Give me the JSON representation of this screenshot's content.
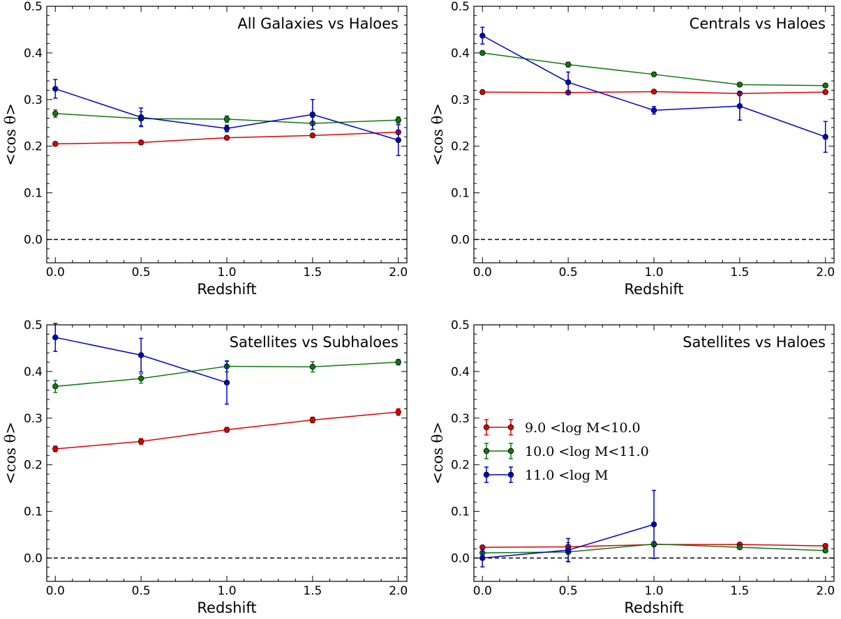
{
  "colors": {
    "red": "#dd0000",
    "green": "#117711",
    "blue": "#0000cc",
    "axis": "#000000"
  },
  "legend": [
    {
      "label": "9.0 <log M<10.0",
      "color": "#dd0000"
    },
    {
      "label": "10.0 <log M<11.0",
      "color": "#117711"
    },
    {
      "label": "11.0 <log M",
      "color": "#0000cc"
    }
  ],
  "chart_data": [
    {
      "type": "line",
      "title": "All Galaxies vs Haloes",
      "xlabel": "Redshift",
      "ylabel": "<cos θ>",
      "xlim": [
        -0.05,
        2.05
      ],
      "ylim": [
        -0.05,
        0.5
      ],
      "x_ticks": [
        "0.0",
        "0.5",
        "1.0",
        "1.5",
        "2.0"
      ],
      "y_ticks": [
        "0.0",
        "0.1",
        "0.2",
        "0.3",
        "0.4",
        "0.5"
      ],
      "reference_line": 0.0,
      "x": [
        0.0,
        0.5,
        1.0,
        1.5,
        2.0
      ],
      "series": [
        {
          "name": "9.0 <log M<10.0",
          "values": [
            0.205,
            0.208,
            0.218,
            0.223,
            0.23
          ],
          "errors": [
            0.004,
            0.004,
            0.004,
            0.004,
            0.004
          ]
        },
        {
          "name": "10.0 <log M<11.0",
          "values": [
            0.27,
            0.259,
            0.258,
            0.249,
            0.256
          ],
          "errors": [
            0.008,
            0.015,
            0.007,
            0.013,
            0.007
          ]
        },
        {
          "name": "11.0 <log M",
          "values": [
            0.323,
            0.262,
            0.238,
            0.268,
            0.213
          ],
          "errors": [
            0.02,
            0.02,
            0.007,
            0.032,
            0.033
          ]
        }
      ]
    },
    {
      "type": "line",
      "title": "Centrals vs Haloes",
      "xlabel": "Redshift",
      "ylabel": "<cos θ>",
      "xlim": [
        -0.05,
        2.05
      ],
      "ylim": [
        -0.05,
        0.5
      ],
      "x_ticks": [
        "0.0",
        "0.5",
        "1.0",
        "1.5",
        "2.0"
      ],
      "y_ticks": [
        "0.0",
        "0.1",
        "0.2",
        "0.3",
        "0.4",
        "0.5"
      ],
      "reference_line": 0.0,
      "x": [
        0.0,
        0.5,
        1.0,
        1.5,
        2.0
      ],
      "series": [
        {
          "name": "9.0 <log M<10.0",
          "values": [
            0.316,
            0.315,
            0.317,
            0.313,
            0.316
          ],
          "errors": [
            0.003,
            0.003,
            0.003,
            0.003,
            0.003
          ]
        },
        {
          "name": "10.0 <log M<11.0",
          "values": [
            0.4,
            0.375,
            0.354,
            0.332,
            0.33
          ],
          "errors": [
            0.004,
            0.005,
            0.004,
            0.004,
            0.004
          ]
        },
        {
          "name": "11.0 <log M",
          "values": [
            0.437,
            0.337,
            0.277,
            0.286,
            0.22
          ],
          "errors": [
            0.018,
            0.022,
            0.008,
            0.03,
            0.033
          ]
        }
      ]
    },
    {
      "type": "line",
      "title": "Satellites vs Subhaloes",
      "xlabel": "Redshift",
      "ylabel": "<cos θ>",
      "xlim": [
        -0.05,
        2.05
      ],
      "ylim": [
        -0.05,
        0.5
      ],
      "x_ticks": [
        "0.0",
        "0.5",
        "1.0",
        "1.5",
        "2.0"
      ],
      "y_ticks": [
        "0.0",
        "0.1",
        "0.2",
        "0.3",
        "0.4",
        "0.5"
      ],
      "reference_line": 0.0,
      "x": [
        0.0,
        0.5,
        1.0,
        1.5,
        2.0
      ],
      "series": [
        {
          "name": "9.0 <log M<10.0",
          "values": [
            0.234,
            0.25,
            0.275,
            0.296,
            0.313
          ],
          "errors": [
            0.006,
            0.006,
            0.005,
            0.006,
            0.007
          ]
        },
        {
          "name": "10.0 <log M<11.0",
          "values": [
            0.368,
            0.385,
            0.411,
            0.41,
            0.42
          ],
          "errors": [
            0.013,
            0.01,
            0.012,
            0.011,
            0.006
          ]
        },
        {
          "x": [
            0.0,
            0.5,
            1.0
          ],
          "name": "11.0 <log M",
          "values": [
            0.473,
            0.435,
            0.376
          ],
          "errors": [
            0.03,
            0.036,
            0.046
          ]
        }
      ]
    },
    {
      "type": "line",
      "title": "Satellites vs Haloes",
      "xlabel": "Redshift",
      "ylabel": "<cos θ>",
      "xlim": [
        -0.05,
        2.05
      ],
      "ylim": [
        -0.05,
        0.5
      ],
      "x_ticks": [
        "0.0",
        "0.5",
        "1.0",
        "1.5",
        "2.0"
      ],
      "y_ticks": [
        "0.0",
        "0.1",
        "0.2",
        "0.3",
        "0.4",
        "0.5"
      ],
      "reference_line": 0.0,
      "legend_position": "center-left",
      "x": [
        0.0,
        0.5,
        1.0,
        1.5,
        2.0
      ],
      "series": [
        {
          "name": "9.0 <log M<10.0",
          "values": [
            0.023,
            0.024,
            0.029,
            0.029,
            0.026
          ],
          "errors": [
            0.003,
            0.003,
            0.003,
            0.003,
            0.003
          ]
        },
        {
          "name": "10.0 <log M<11.0",
          "values": [
            0.011,
            0.013,
            0.03,
            0.023,
            0.016
          ],
          "errors": [
            0.004,
            0.02,
            0.005,
            0.004,
            0.004
          ]
        },
        {
          "x": [
            0.0,
            0.5,
            1.0
          ],
          "name": "11.0 <log M",
          "values": [
            0.0,
            0.017,
            0.072
          ],
          "errors": [
            0.019,
            0.025,
            0.073
          ]
        }
      ]
    }
  ]
}
